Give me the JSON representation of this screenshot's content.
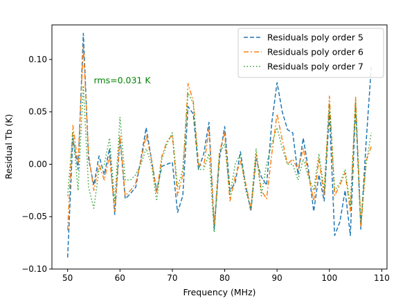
{
  "chart_data": {
    "type": "line",
    "title": "",
    "xlabel": "Frequency (MHz)",
    "ylabel": "Residual Tb (K)",
    "xlim": [
      47,
      111
    ],
    "ylim": [
      -0.1,
      0.133
    ],
    "xticks": [
      50,
      60,
      70,
      80,
      90,
      100,
      110
    ],
    "xtick_labels": [
      "50",
      "60",
      "70",
      "80",
      "90",
      "100",
      "110"
    ],
    "yticks": [
      -0.1,
      -0.05,
      0.0,
      0.05,
      0.1
    ],
    "ytick_labels": [
      "−0.10",
      "−0.05",
      "0.00",
      "0.05",
      "0.10"
    ],
    "grid": false,
    "legend_position": "top-right",
    "annotation": {
      "text": "rms=0.031 K",
      "x": 55,
      "y": 0.08,
      "color": "#008000"
    },
    "x": [
      50,
      51,
      52,
      53,
      54,
      55,
      56,
      57,
      58,
      59,
      60,
      61,
      62,
      63,
      64,
      65,
      66,
      67,
      68,
      69,
      70,
      71,
      72,
      73,
      74,
      75,
      76,
      77,
      78,
      79,
      80,
      81,
      82,
      83,
      84,
      85,
      86,
      87,
      88,
      89,
      90,
      91,
      92,
      93,
      94,
      95,
      96,
      97,
      98,
      99,
      100,
      101,
      102,
      103,
      104,
      105,
      106,
      107,
      108
    ],
    "series": [
      {
        "name": "Residuals poly order 5",
        "color": "#1f77b4",
        "dash": "6,3",
        "values": [
          -0.089,
          0.025,
          -0.005,
          0.125,
          0.005,
          -0.02,
          0.008,
          -0.01,
          0.015,
          -0.048,
          0.025,
          -0.033,
          -0.028,
          -0.022,
          0.005,
          0.035,
          0.005,
          -0.025,
          -0.002,
          0.0,
          0.002,
          -0.046,
          -0.03,
          0.055,
          0.048,
          -0.005,
          0.01,
          0.04,
          -0.062,
          0.005,
          0.036,
          -0.025,
          -0.018,
          0.012,
          -0.02,
          -0.045,
          0.005,
          -0.012,
          -0.02,
          0.04,
          0.078,
          0.05,
          0.033,
          0.03,
          -0.01,
          0.025,
          -0.005,
          -0.045,
          -0.01,
          -0.035,
          0.05,
          -0.068,
          -0.055,
          -0.025,
          -0.068,
          0.055,
          -0.062,
          0.02,
          0.093
        ]
      },
      {
        "name": "Residuals poly order 6",
        "color": "#ff7f0e",
        "dash": "7,3,2,3",
        "values": [
          -0.063,
          0.037,
          0.0,
          0.113,
          0.01,
          -0.025,
          0.0,
          -0.015,
          0.008,
          -0.045,
          0.028,
          -0.03,
          -0.025,
          -0.018,
          0.003,
          0.028,
          0.005,
          -0.028,
          0.008,
          0.022,
          0.028,
          -0.03,
          -0.01,
          0.077,
          0.06,
          0.0,
          -0.002,
          0.033,
          -0.058,
          0.012,
          0.03,
          -0.035,
          -0.012,
          0.003,
          -0.018,
          -0.043,
          0.01,
          -0.025,
          -0.033,
          0.01,
          0.048,
          0.023,
          0.0,
          0.005,
          -0.005,
          0.015,
          -0.01,
          -0.035,
          0.005,
          -0.03,
          0.065,
          -0.03,
          -0.02,
          -0.008,
          -0.045,
          0.064,
          -0.06,
          0.003,
          0.017
        ]
      },
      {
        "name": "Residuals poly order 7",
        "color": "#2ca02c",
        "dash": "1.5,3",
        "values": [
          -0.03,
          0.03,
          -0.025,
          0.075,
          -0.022,
          -0.042,
          -0.005,
          0.0,
          0.025,
          -0.035,
          0.045,
          -0.015,
          -0.015,
          -0.01,
          0.0,
          0.015,
          0.0,
          -0.035,
          0.005,
          0.02,
          0.03,
          -0.022,
          -0.005,
          0.068,
          0.058,
          -0.005,
          -0.005,
          0.01,
          -0.065,
          0.01,
          0.02,
          -0.03,
          0.0,
          0.01,
          -0.025,
          -0.042,
          0.015,
          -0.03,
          0.0,
          0.02,
          0.035,
          0.015,
          0.0,
          0.0,
          -0.015,
          0.005,
          -0.012,
          -0.025,
          0.01,
          -0.025,
          0.058,
          -0.025,
          -0.018,
          -0.005,
          -0.04,
          0.06,
          -0.055,
          0.0,
          0.03
        ]
      }
    ]
  }
}
